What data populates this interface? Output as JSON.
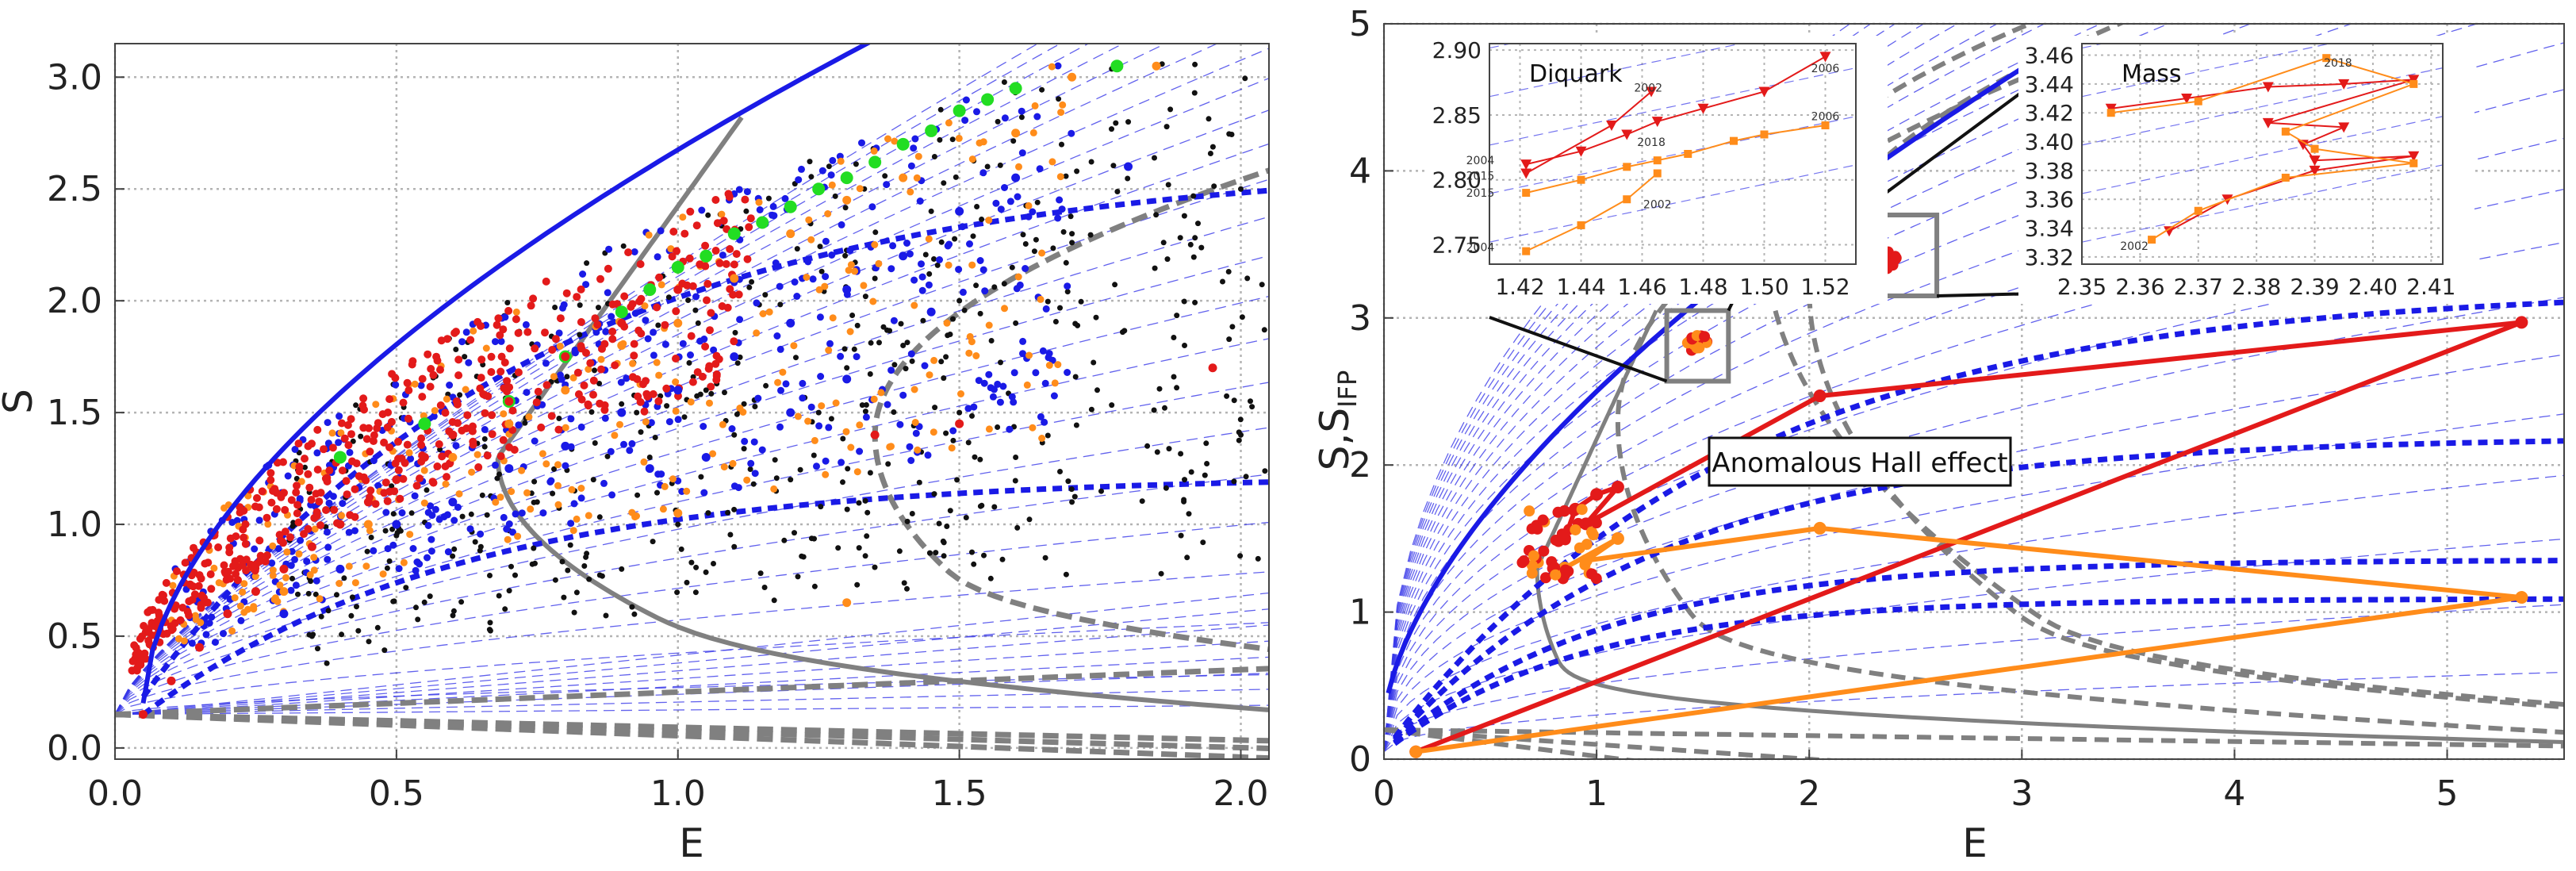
{
  "colors": {
    "blue": "#1a1ae6",
    "red": "#e31a1a",
    "orange": "#ff8c1a",
    "green": "#22dd22",
    "black": "#111111",
    "gray": "#808080",
    "grid": "#b4b4b4"
  },
  "chart_data": [
    {
      "type": "scatter",
      "xlabel": "E",
      "ylabel": "S",
      "xlim": [
        0,
        2.05
      ],
      "ylim": [
        -0.05,
        3.15
      ],
      "xticks": [
        "0.0",
        "0.5",
        "1.0",
        "1.5",
        "2.0"
      ],
      "yticks": [
        "0.0",
        "0.5",
        "1.0",
        "1.5",
        "2.0",
        "2.5",
        "3.0"
      ],
      "grid": true,
      "series": [
        {
          "color": "black",
          "note_points": [
            [
              0.35,
              0.5
            ],
            [
              0.5,
              0.95
            ],
            [
              0.65,
              0.9
            ],
            [
              0.75,
              1.1
            ],
            [
              0.85,
              1.2
            ],
            [
              0.95,
              1.3
            ],
            [
              1.05,
              1.6
            ],
            [
              1.1,
              1.4
            ],
            [
              1.2,
              1.9
            ],
            [
              1.25,
              1.5
            ],
            [
              1.3,
              1.7
            ],
            [
              1.35,
              2.1
            ],
            [
              1.4,
              1.8
            ],
            [
              1.45,
              2.4
            ],
            [
              1.5,
              2.0
            ],
            [
              1.55,
              2.6
            ],
            [
              1.6,
              1.9
            ],
            [
              1.7,
              2.3
            ],
            [
              1.8,
              2.8
            ],
            [
              1.9,
              1.8
            ],
            [
              2.0,
              2.5
            ],
            [
              1.2,
              1.2
            ],
            [
              1.1,
              0.9
            ],
            [
              0.9,
              0.8
            ],
            [
              1.0,
              1.0
            ],
            [
              1.5,
              1.5
            ],
            [
              1.6,
              1.3
            ],
            [
              1.7,
              1.1
            ],
            [
              1.9,
              1.2
            ],
            [
              2.0,
              1.4
            ]
          ]
        },
        {
          "color": "blue",
          "note_points": [
            [
              0.3,
              0.6
            ],
            [
              0.4,
              0.8
            ],
            [
              0.5,
              1.0
            ],
            [
              0.6,
              1.1
            ],
            [
              0.7,
              1.25
            ],
            [
              0.8,
              1.35
            ],
            [
              0.9,
              1.5
            ],
            [
              1.0,
              1.6
            ],
            [
              1.1,
              1.75
            ],
            [
              1.2,
              1.9
            ],
            [
              1.3,
              2.05
            ],
            [
              1.4,
              2.2
            ],
            [
              1.5,
              2.4
            ],
            [
              1.6,
              2.55
            ],
            [
              1.05,
              1.3
            ],
            [
              1.2,
              1.5
            ],
            [
              0.95,
              1.25
            ],
            [
              1.3,
              1.65
            ],
            [
              1.45,
              1.95
            ],
            [
              1.8,
              2.6
            ]
          ]
        },
        {
          "color": "red",
          "note_points": [
            [
              0.05,
              0.15
            ],
            [
              0.1,
              0.3
            ],
            [
              0.15,
              0.45
            ],
            [
              0.2,
              0.6
            ],
            [
              0.25,
              0.7
            ],
            [
              0.3,
              0.8
            ],
            [
              0.35,
              0.9
            ],
            [
              0.4,
              1.0
            ],
            [
              0.45,
              1.1
            ],
            [
              0.5,
              1.2
            ],
            [
              0.55,
              1.3
            ],
            [
              0.6,
              1.4
            ],
            [
              0.7,
              1.55
            ],
            [
              0.8,
              1.75
            ],
            [
              0.9,
              1.9
            ],
            [
              1.0,
              2.05
            ],
            [
              1.95,
              1.7
            ],
            [
              1.5,
              1.45
            ],
            [
              1.35,
              1.4
            ]
          ]
        },
        {
          "color": "orange",
          "note_points": [
            [
              0.3,
              0.7
            ],
            [
              0.45,
              1.0
            ],
            [
              0.6,
              1.3
            ],
            [
              0.7,
              1.45
            ],
            [
              0.8,
              1.6
            ],
            [
              0.9,
              1.8
            ],
            [
              1.0,
              1.9
            ],
            [
              1.1,
              2.1
            ],
            [
              1.2,
              2.3
            ],
            [
              1.3,
              2.45
            ],
            [
              1.4,
              2.55
            ],
            [
              1.6,
              2.75
            ],
            [
              1.7,
              3.0
            ],
            [
              1.85,
              3.05
            ],
            [
              1.0,
              1.05
            ],
            [
              1.3,
              0.65
            ]
          ]
        },
        {
          "color": "green",
          "points": [
            [
              0.4,
              1.3
            ],
            [
              0.55,
              1.45
            ],
            [
              0.7,
              1.55
            ],
            [
              0.8,
              1.75
            ],
            [
              0.9,
              1.95
            ],
            [
              0.95,
              2.05
            ],
            [
              1.0,
              2.15
            ],
            [
              1.05,
              2.2
            ],
            [
              1.1,
              2.3
            ],
            [
              1.15,
              2.35
            ],
            [
              1.2,
              2.42
            ],
            [
              1.25,
              2.5
            ],
            [
              1.3,
              2.55
            ],
            [
              1.35,
              2.62
            ],
            [
              1.4,
              2.7
            ],
            [
              1.45,
              2.76
            ],
            [
              1.5,
              2.85
            ],
            [
              1.55,
              2.9
            ],
            [
              1.6,
              2.95
            ],
            [
              1.78,
              3.05
            ]
          ]
        }
      ]
    },
    {
      "type": "line",
      "xlabel": "E",
      "ylabel": "S,S",
      "ylabel_sub": "IFP",
      "xlim": [
        0,
        5.55
      ],
      "ylim": [
        0,
        5
      ],
      "xticks": [
        "0",
        "1",
        "2",
        "3",
        "4",
        "5"
      ],
      "yticks": [
        "0",
        "1",
        "2",
        "3",
        "4",
        "5"
      ],
      "grid": true,
      "series": [
        {
          "color": "red",
          "x": [
            0.85,
            0.9,
            1.0,
            1.1,
            0.95,
            2.05,
            5.35,
            0.15
          ],
          "y": [
            1.5,
            1.7,
            1.8,
            1.85,
            1.6,
            2.47,
            2.97,
            0.05
          ]
        },
        {
          "color": "orange",
          "x": [
            0.85,
            1.1,
            0.95,
            2.05,
            5.35,
            0.15
          ],
          "y": [
            1.3,
            1.5,
            1.35,
            1.57,
            1.1,
            0.05
          ]
        }
      ],
      "annotation": "Anomalous Hall effect",
      "insets": [
        {
          "title": "Diquark",
          "xlim": [
            1.41,
            1.53
          ],
          "ylim": [
            2.735,
            2.905
          ],
          "xticks": [
            "1.42",
            "1.44",
            "1.46",
            "1.48",
            "1.50",
            "1.52"
          ],
          "yticks": [
            "2.75",
            "2.80",
            "2.85",
            "2.90"
          ],
          "year_labels": [
            "2002",
            "2006",
            "2004",
            "2015",
            "2015",
            "2018",
            "2002",
            "2006",
            "2004"
          ],
          "series": [
            {
              "color": "red",
              "x": [
                1.422,
                1.44,
                1.455,
                1.465,
                1.48,
                1.5,
                1.52
              ],
              "y": [
                2.812,
                2.822,
                2.835,
                2.845,
                2.855,
                2.868,
                2.895
              ]
            },
            {
              "color": "red",
              "x": [
                1.422,
                1.45,
                1.463
              ],
              "y": [
                2.805,
                2.842,
                2.868
              ]
            },
            {
              "color": "orange",
              "x": [
                1.422,
                1.44,
                1.455,
                1.465,
                1.475,
                1.49,
                1.5,
                1.52
              ],
              "y": [
                2.79,
                2.8,
                2.81,
                2.815,
                2.82,
                2.83,
                2.835,
                2.842
              ]
            },
            {
              "color": "orange",
              "x": [
                1.422,
                1.44,
                1.455,
                1.465
              ],
              "y": [
                2.745,
                2.765,
                2.785,
                2.805
              ]
            }
          ]
        },
        {
          "title": "Mass",
          "xlim": [
            2.35,
            2.412
          ],
          "ylim": [
            3.315,
            3.468
          ],
          "xticks": [
            "2.35",
            "2.36",
            "2.37",
            "2.38",
            "2.39",
            "2.40",
            "2.41"
          ],
          "yticks": [
            "3.32",
            "3.34",
            "3.36",
            "3.38",
            "3.40",
            "3.42",
            "3.44",
            "3.46"
          ],
          "year_labels": [
            "2018",
            "2002"
          ],
          "series": [
            {
              "color": "red",
              "x": [
                2.355,
                2.368,
                2.382,
                2.395,
                2.407,
                2.382,
                2.395,
                2.388,
                2.39,
                2.407,
                2.39,
                2.375,
                2.365
              ],
              "y": [
                3.423,
                3.43,
                3.438,
                3.44,
                3.443,
                3.413,
                3.41,
                3.398,
                3.387,
                3.39,
                3.38,
                3.36,
                3.338
              ]
            },
            {
              "color": "orange",
              "x": [
                2.355,
                2.37,
                2.392,
                2.407,
                2.385,
                2.39,
                2.407,
                2.385,
                2.37,
                2.362
              ],
              "y": [
                3.42,
                3.428,
                3.458,
                3.44,
                3.407,
                3.395,
                3.385,
                3.375,
                3.352,
                3.332
              ]
            }
          ]
        }
      ]
    }
  ]
}
